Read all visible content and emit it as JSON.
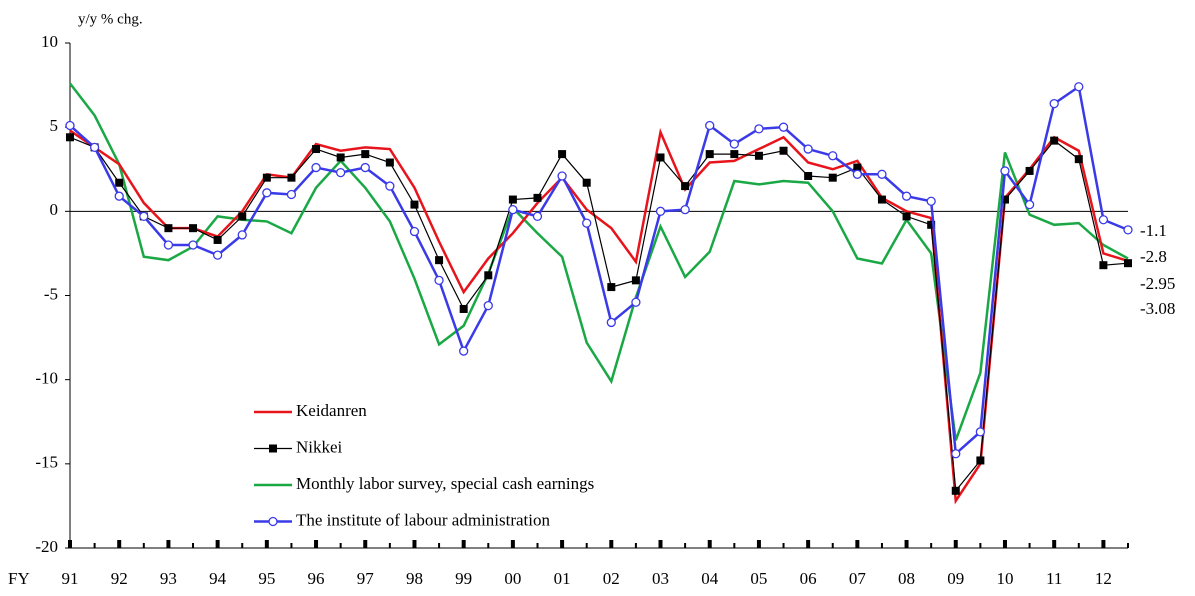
{
  "chart_data": {
    "type": "line",
    "y_axis_label": "y/y % chg.",
    "x_axis_prefix": "FY",
    "categories": [
      "91",
      null,
      "92",
      null,
      "93",
      null,
      "94",
      null,
      "95",
      null,
      "96",
      null,
      "97",
      null,
      "98",
      null,
      "99",
      null,
      "00",
      null,
      "01",
      null,
      "02",
      null,
      "03",
      null,
      "04",
      null,
      "05",
      null,
      "06",
      null,
      "07",
      null,
      "08",
      null,
      "09",
      null,
      "10",
      null,
      "11",
      null,
      "12",
      null
    ],
    "series": [
      {
        "name": "Keidanren",
        "color": "#e8141c",
        "marker": "none",
        "values": [
          4.8,
          3.8,
          2.8,
          0.5,
          -1.0,
          -1.0,
          -1.5,
          0.0,
          2.2,
          2.0,
          4.0,
          3.6,
          3.8,
          3.7,
          1.4,
          -1.8,
          -4.8,
          -2.8,
          -1.3,
          0.5,
          2.0,
          0.1,
          -1.0,
          -3.0,
          4.7,
          1.3,
          2.9,
          3.0,
          3.7,
          4.4,
          2.9,
          2.5,
          3.0,
          0.8,
          0.0,
          -0.4,
          -17.2,
          -15.0,
          0.8,
          2.5,
          4.4,
          3.6,
          -2.5,
          -2.95
        ]
      },
      {
        "name": "Nikkei",
        "color": "#000000",
        "marker": "square",
        "values": [
          4.4,
          3.8,
          1.7,
          -0.3,
          -1.0,
          -1.0,
          -1.7,
          -0.3,
          2.0,
          2.0,
          3.7,
          3.2,
          3.4,
          2.9,
          0.4,
          -2.9,
          -5.8,
          -3.8,
          0.7,
          0.8,
          3.4,
          1.7,
          -4.5,
          -4.1,
          3.2,
          1.5,
          3.4,
          3.4,
          3.3,
          3.6,
          2.1,
          2.0,
          2.6,
          0.7,
          -0.3,
          -0.8,
          -16.6,
          -14.8,
          0.7,
          2.4,
          4.2,
          3.1,
          -3.2,
          -3.08
        ]
      },
      {
        "name": "Monthly labor survey, special cash earnings",
        "color": "#1aa845",
        "marker": "none",
        "values": [
          7.6,
          5.7,
          2.8,
          -2.7,
          -2.9,
          -2.1,
          -0.3,
          -0.5,
          -0.6,
          -1.3,
          1.4,
          3.0,
          1.4,
          -0.6,
          -4.0,
          -7.9,
          -6.8,
          -3.7,
          0.2,
          -1.3,
          -2.7,
          -7.8,
          -10.1,
          -5.1,
          -0.9,
          -3.9,
          -2.4,
          1.8,
          1.6,
          1.8,
          1.7,
          0.0,
          -2.8,
          -3.1,
          -0.5,
          -2.5,
          -13.6,
          -9.6,
          3.5,
          -0.2,
          -0.8,
          -0.7,
          -2.0,
          -2.8
        ]
      },
      {
        "name": "The institute of labour administration",
        "color": "#3a3ae8",
        "marker": "circle",
        "values": [
          5.1,
          3.8,
          0.9,
          -0.3,
          -2.0,
          -2.0,
          -2.6,
          -1.4,
          1.1,
          1.0,
          2.6,
          2.3,
          2.6,
          1.5,
          -1.2,
          -4.1,
          -8.3,
          -5.6,
          0.1,
          -0.3,
          2.1,
          -0.7,
          -6.6,
          -5.4,
          0.0,
          0.1,
          5.1,
          4.0,
          4.9,
          5.0,
          3.7,
          3.3,
          2.2,
          2.2,
          0.9,
          0.6,
          -14.4,
          -13.1,
          2.4,
          0.4,
          6.4,
          7.4,
          -0.5,
          -1.1
        ]
      }
    ],
    "ylim": [
      -20,
      10
    ],
    "yticks": [
      10,
      5,
      0,
      -5,
      -10,
      -15,
      -20
    ]
  }
}
